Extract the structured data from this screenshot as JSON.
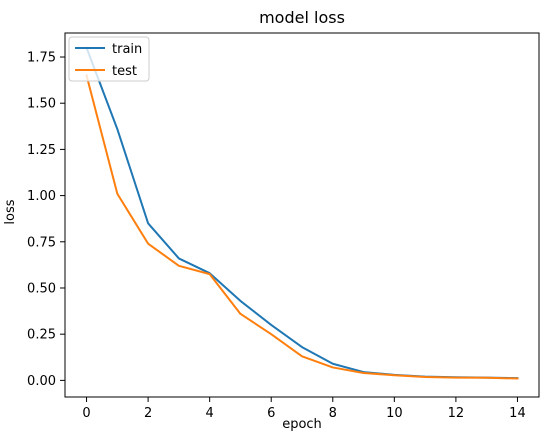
{
  "chart_data": {
    "type": "line",
    "title": "model loss",
    "xlabel": "epoch",
    "ylabel": "loss",
    "xlim": [
      -0.7,
      14.7
    ],
    "ylim": [
      -0.09,
      1.88
    ],
    "xticks": [
      0,
      2,
      4,
      6,
      8,
      10,
      12,
      14
    ],
    "xtick_labels": [
      "0",
      "2",
      "4",
      "6",
      "8",
      "10",
      "12",
      "14"
    ],
    "yticks": [
      0.0,
      0.25,
      0.5,
      0.75,
      1.0,
      1.25,
      1.5,
      1.75
    ],
    "ytick_labels": [
      "0.00",
      "0.25",
      "0.50",
      "0.75",
      "1.00",
      "1.25",
      "1.50",
      "1.75"
    ],
    "grid": false,
    "legend_position": "upper-left",
    "x": [
      0,
      1,
      2,
      3,
      4,
      5,
      6,
      7,
      8,
      9,
      10,
      11,
      12,
      13,
      14
    ],
    "series": [
      {
        "name": "train",
        "color": "#1f77b4",
        "values": [
          1.8,
          1.36,
          0.85,
          0.66,
          0.58,
          0.43,
          0.3,
          0.18,
          0.09,
          0.045,
          0.03,
          0.02,
          0.017,
          0.015,
          0.012
        ]
      },
      {
        "name": "test",
        "color": "#ff7f0e",
        "values": [
          1.65,
          1.01,
          0.74,
          0.62,
          0.575,
          0.36,
          0.25,
          0.13,
          0.07,
          0.04,
          0.028,
          0.018,
          0.015,
          0.014,
          0.01
        ]
      }
    ]
  }
}
